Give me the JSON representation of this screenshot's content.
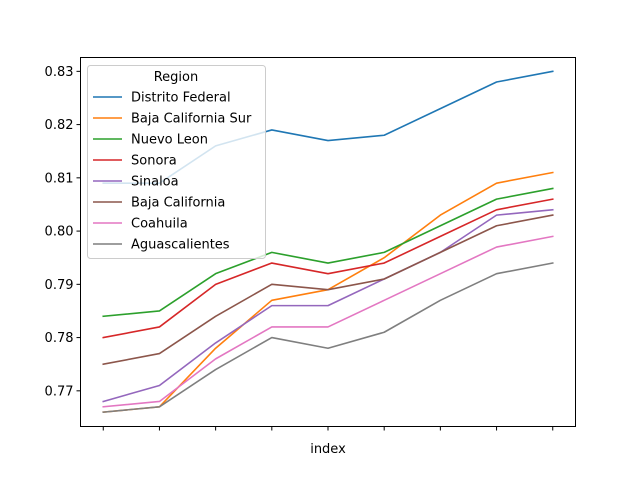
{
  "chart_data": {
    "type": "line",
    "title": "",
    "xlabel": "index",
    "ylabel": "",
    "x": [
      0,
      1,
      2,
      3,
      4,
      5,
      6,
      7,
      8
    ],
    "x_tick_labels": [
      "",
      "",
      "",
      "",
      "",
      "",
      "",
      "",
      ""
    ],
    "ylim": [
      0.7633,
      0.8326
    ],
    "yticks": [
      0.77,
      0.78,
      0.79,
      0.8,
      0.81,
      0.82,
      0.83
    ],
    "ytick_labels": [
      "0.77",
      "0.78",
      "0.79",
      "0.80",
      "0.81",
      "0.82",
      "0.83"
    ],
    "grid": false,
    "legend": {
      "title": "Region",
      "placement": "upper-left"
    },
    "series": [
      {
        "name": "Distrito Federal",
        "color": "#1f77b4",
        "values": [
          0.809,
          0.809,
          0.816,
          0.819,
          0.817,
          0.818,
          0.823,
          0.828,
          0.83
        ]
      },
      {
        "name": "Baja California Sur",
        "color": "#ff7f0e",
        "values": [
          0.766,
          0.767,
          0.778,
          0.787,
          0.789,
          0.795,
          0.803,
          0.809,
          0.811
        ]
      },
      {
        "name": "Nuevo Leon",
        "color": "#2ca02c",
        "values": [
          0.784,
          0.785,
          0.792,
          0.796,
          0.794,
          0.796,
          0.801,
          0.806,
          0.808
        ]
      },
      {
        "name": "Sonora",
        "color": "#d62728",
        "values": [
          0.78,
          0.782,
          0.79,
          0.794,
          0.792,
          0.794,
          0.799,
          0.804,
          0.806
        ]
      },
      {
        "name": "Sinaloa",
        "color": "#9467bd",
        "values": [
          0.768,
          0.771,
          0.779,
          0.786,
          0.786,
          0.791,
          0.796,
          0.803,
          0.804
        ]
      },
      {
        "name": "Baja California",
        "color": "#8c564b",
        "values": [
          0.775,
          0.777,
          0.784,
          0.79,
          0.789,
          0.791,
          0.796,
          0.801,
          0.803
        ]
      },
      {
        "name": "Coahuila",
        "color": "#e377c2",
        "values": [
          0.767,
          0.768,
          0.776,
          0.782,
          0.782,
          0.787,
          0.792,
          0.797,
          0.799
        ]
      },
      {
        "name": "Aguascalientes",
        "color": "#7f7f7f",
        "values": [
          0.766,
          0.767,
          0.774,
          0.78,
          0.778,
          0.781,
          0.787,
          0.792,
          0.794
        ]
      }
    ]
  }
}
